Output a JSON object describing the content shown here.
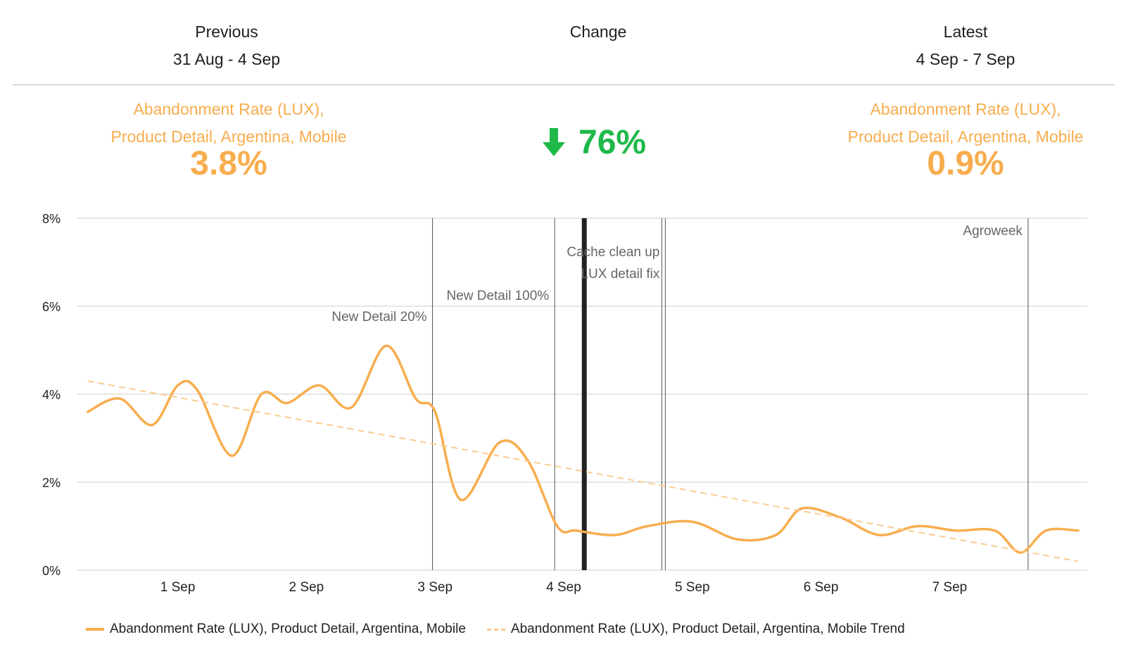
{
  "header": {
    "previous": {
      "title": "Previous",
      "range": "31 Aug - 4 Sep"
    },
    "change": {
      "title": "Change"
    },
    "latest": {
      "title": "Latest",
      "range": "4 Sep - 7 Sep"
    }
  },
  "metrics": {
    "previous": {
      "label_line1": "Abandonment Rate (LUX),",
      "label_line2": "Product Detail, Argentina, Mobile",
      "value": "3.8%"
    },
    "latest": {
      "label_line1": "Abandonment Rate (LUX),",
      "label_line2": "Product Detail, Argentina, Mobile",
      "value": "0.9%"
    },
    "change": {
      "value": "76%",
      "direction": "down",
      "icon": "arrow-down-icon"
    }
  },
  "colors": {
    "series": "#f7ad4e",
    "trend": "#f9cc8f",
    "change_down": "#1fb94a",
    "grid": "#cccccc",
    "annotation_line": "#555555",
    "highlight_line": "#222222"
  },
  "chart_data": {
    "type": "line",
    "xlim": [
      0.22,
      8.07
    ],
    "ylim": [
      0,
      8
    ],
    "y_ticks": [
      "0%",
      "2%",
      "4%",
      "6%",
      "8%"
    ],
    "y_tick_values": [
      0,
      2,
      4,
      6,
      8
    ],
    "x_tick_labels": [
      "1 Sep",
      "2 Sep",
      "3 Sep",
      "4 Sep",
      "5 Sep",
      "6 Sep",
      "7 Sep"
    ],
    "x_tick_values": [
      1,
      2,
      3,
      4,
      5,
      6,
      7
    ],
    "grid": true,
    "legend_position": "bottom",
    "series": [
      {
        "name": "Abandonment Rate (LUX), Product Detail, Argentina, Mobile",
        "style": "solid",
        "x": [
          0.3,
          0.55,
          0.8,
          1.0,
          1.15,
          1.42,
          1.65,
          1.85,
          2.1,
          2.35,
          2.62,
          2.85,
          3.0,
          3.2,
          3.5,
          3.72,
          3.95,
          4.1,
          4.4,
          4.65,
          5.0,
          5.35,
          5.65,
          5.85,
          6.15,
          6.45,
          6.75,
          7.05,
          7.35,
          7.55,
          7.75,
          8.0
        ],
        "y": [
          3.6,
          3.9,
          3.3,
          4.2,
          4.1,
          2.6,
          4.0,
          3.8,
          4.2,
          3.7,
          5.1,
          3.9,
          3.6,
          1.6,
          2.9,
          2.5,
          1.0,
          0.9,
          0.8,
          1.0,
          1.1,
          0.7,
          0.8,
          1.4,
          1.2,
          0.8,
          1.0,
          0.9,
          0.9,
          0.4,
          0.9,
          0.9
        ]
      },
      {
        "name": "Abandonment Rate (LUX), Product Detail, Argentina, Mobile Trend",
        "style": "dashed",
        "x": [
          0.3,
          8.0
        ],
        "y": [
          4.3,
          0.2
        ]
      }
    ],
    "annotations": [
      {
        "x": 2.98,
        "lines": [
          "New Detail 20%"
        ],
        "bold": false
      },
      {
        "x": 3.93,
        "lines": [
          "New Detail 100%"
        ],
        "bold": false
      },
      {
        "x": 4.16,
        "lines": [],
        "bold": true
      },
      {
        "x": 4.79,
        "lines": [
          "Cache clean up",
          "LUX detail fix"
        ],
        "bold": false
      },
      {
        "x": 7.61,
        "lines": [
          "Agroweek"
        ],
        "bold": false
      }
    ]
  },
  "legend": {
    "items": [
      {
        "label": "Abandonment Rate (LUX), Product Detail, Argentina, Mobile",
        "style": "solid"
      },
      {
        "label": "Abandonment Rate (LUX), Product Detail, Argentina, Mobile Trend",
        "style": "dashed"
      }
    ]
  }
}
